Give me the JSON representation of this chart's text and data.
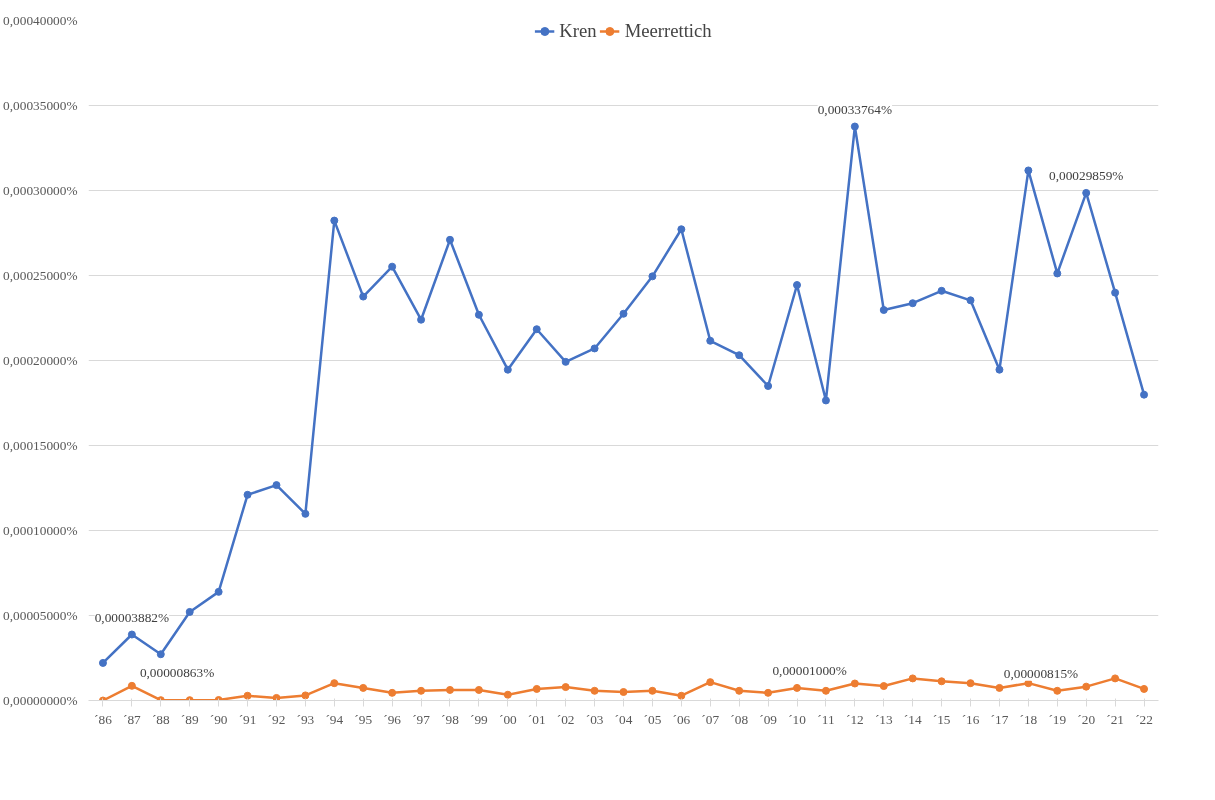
{
  "chart_data": {
    "type": "line",
    "categories": [
      "´86",
      "´87",
      "´88",
      "´89",
      "´90",
      "´91",
      "´92",
      "´93",
      "´94",
      "´95",
      "´96",
      "´97",
      "´98",
      "´99",
      "´00",
      "´01",
      "´02",
      "´03",
      "´04",
      "´05",
      "´06",
      "´07",
      "´08",
      "´09",
      "´10",
      "´11",
      "´12",
      "´13",
      "´14",
      "´15",
      "´16",
      "´17",
      "´18",
      "´19",
      "´20",
      "´21",
      "´22"
    ],
    "series": [
      {
        "name": "Kren",
        "color": "#4472c4",
        "values": [
          2.21e-05,
          3.882e-05,
          2.72e-05,
          5.21e-05,
          6.39e-05,
          0.000121,
          0.0001267,
          0.0001098,
          0.0002823,
          0.0002376,
          0.0002552,
          0.000224,
          0.000271,
          0.0002269,
          0.0001946,
          0.0002184,
          0.0001992,
          0.0002071,
          0.0002275,
          0.0002495,
          0.0002772,
          0.0002116,
          0.0002031,
          0.000185,
          0.0002444,
          0.0001765,
          0.00033764,
          0.0002297,
          0.0002337,
          0.000241,
          0.0002354,
          0.0001946,
          0.0003118,
          0.0002512,
          0.00029859,
          0.0002399,
          0.0001799
        ],
        "value_labels": [
          null,
          "0,00003882%",
          null,
          null,
          null,
          null,
          null,
          null,
          null,
          null,
          null,
          null,
          null,
          null,
          null,
          null,
          null,
          null,
          null,
          null,
          null,
          null,
          null,
          null,
          null,
          null,
          "0,00033764%",
          null,
          null,
          null,
          null,
          null,
          null,
          null,
          "0,00029859%",
          null,
          null
        ]
      },
      {
        "name": "Meerrettich",
        "color": "#ed7d31",
        "values": [
          0,
          8.63e-06,
          2e-07,
          2e-07,
          3e-07,
          2.8e-06,
          1.5e-06,
          3e-06,
          1.02e-05,
          7.4e-06,
          4.5e-06,
          5.7e-06,
          6.2e-06,
          6.2e-06,
          3.4e-06,
          6.8e-06,
          7.9e-06,
          5.7e-06,
          5e-06,
          5.7e-06,
          2.8e-06,
          1.08e-05,
          5.7e-06,
          4.5e-06,
          7.4e-06,
          5.7e-06,
          1e-05,
          8.5e-06,
          1.3e-05,
          1.13e-05,
          1.02e-05,
          7.4e-06,
          1.02e-05,
          5.7e-06,
          8.15e-06,
          1.3e-05,
          6.8e-06
        ],
        "value_labels": [
          null,
          "0,00000863%",
          null,
          null,
          null,
          null,
          null,
          null,
          null,
          null,
          null,
          null,
          null,
          null,
          null,
          null,
          null,
          null,
          null,
          null,
          null,
          null,
          null,
          null,
          null,
          null,
          "0,00001000%",
          null,
          null,
          null,
          null,
          null,
          null,
          null,
          "0,00000815%",
          null,
          null
        ]
      }
    ],
    "ylim": [
      0,
      0.0004
    ],
    "yticks": [
      {
        "value": 0,
        "label": "0,00000000%"
      },
      {
        "value": 5e-05,
        "label": "0,00005000%"
      },
      {
        "value": 0.0001,
        "label": "0,00010000%"
      },
      {
        "value": 0.00015,
        "label": "0,00015000%"
      },
      {
        "value": 0.0002,
        "label": "0,00020000%"
      },
      {
        "value": 0.00025,
        "label": "0,00025000%"
      },
      {
        "value": 0.0003,
        "label": "0,00030000%"
      },
      {
        "value": 0.00035,
        "label": "0,00035000%"
      },
      {
        "value": 0.0004,
        "label": "0,00040000%"
      }
    ],
    "grid": "y",
    "legend": "top",
    "marker": "circle",
    "line_style": "solid"
  }
}
